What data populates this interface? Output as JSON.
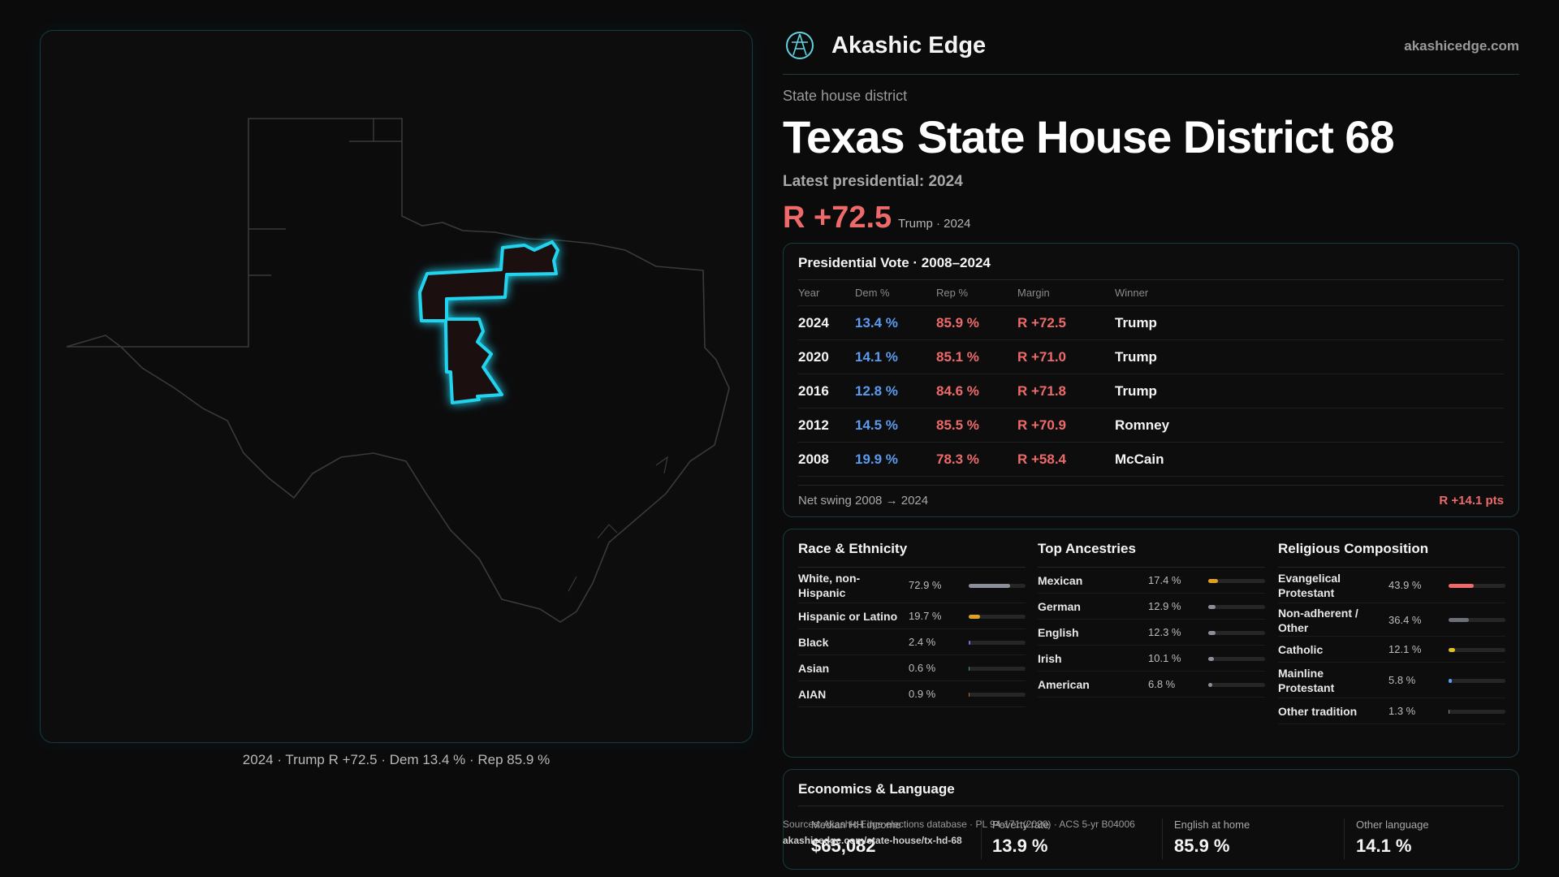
{
  "brand": {
    "name": "Akashic Edge",
    "url": "akashicedge.com"
  },
  "header": {
    "kicker": "State house district",
    "title_state": "Texas",
    "title_district": "State House District 68",
    "latest_label": "Latest presidential: 2024",
    "margin": "R +72.5",
    "margin_sub": "Trump · 2024"
  },
  "map": {
    "caption": "2024 · Trump R +72.5 · Dem 13.4 % · Rep 85.9 %",
    "highlight_color": "#22d3ee",
    "outline_color": "#3a3a3a"
  },
  "presidential": {
    "title": "Presidential Vote · 2008–2024",
    "columns": [
      "Year",
      "Dem %",
      "Rep %",
      "Margin",
      "Winner"
    ],
    "rows": [
      {
        "year": "2024",
        "dem": "13.4 %",
        "rep": "85.9 %",
        "margin": "R +72.5",
        "winner": "Trump"
      },
      {
        "year": "2020",
        "dem": "14.1 %",
        "rep": "85.1 %",
        "margin": "R +71.0",
        "winner": "Trump"
      },
      {
        "year": "2016",
        "dem": "12.8 %",
        "rep": "84.6 %",
        "margin": "R +71.8",
        "winner": "Trump"
      },
      {
        "year": "2012",
        "dem": "14.5 %",
        "rep": "85.5 %",
        "margin": "R +70.9",
        "winner": "Romney"
      },
      {
        "year": "2008",
        "dem": "19.9 %",
        "rep": "78.3 %",
        "margin": "R +58.4",
        "winner": "McCain"
      }
    ],
    "swing_label": "Net swing 2008 → 2024",
    "swing_value": "R +14.1 pts"
  },
  "race": {
    "title": "Race & Ethnicity",
    "items": [
      {
        "label": "White, non-\nHispanic",
        "pct": "72.9 %",
        "value": 72.9,
        "color": "#8a8f99"
      },
      {
        "label": "Hispanic or Latino",
        "pct": "19.7 %",
        "value": 19.7,
        "color": "#e0a020"
      },
      {
        "label": "Black",
        "pct": "2.4 %",
        "value": 2.4,
        "color": "#7d6bd6"
      },
      {
        "label": "Asian",
        "pct": "0.6 %",
        "value": 0.6,
        "color": "#3aa98a"
      },
      {
        "label": "AIAN",
        "pct": "0.9 %",
        "value": 0.9,
        "color": "#c0603a"
      }
    ]
  },
  "ancestry": {
    "title": "Top Ancestries",
    "items": [
      {
        "label": "Mexican",
        "pct": "17.4 %",
        "value": 17.4,
        "color": "#e0a020"
      },
      {
        "label": "German",
        "pct": "12.9 %",
        "value": 12.9,
        "color": "#8a8f99"
      },
      {
        "label": "English",
        "pct": "12.3 %",
        "value": 12.3,
        "color": "#8a8f99"
      },
      {
        "label": "Irish",
        "pct": "10.1 %",
        "value": 10.1,
        "color": "#8a8f99"
      },
      {
        "label": "American",
        "pct": "6.8 %",
        "value": 6.8,
        "color": "#8a8f99"
      }
    ]
  },
  "religion": {
    "title": "Religious Composition",
    "items": [
      {
        "label": "Evangelical\nProtestant",
        "pct": "43.9 %",
        "value": 43.9,
        "color": "#ee6a6a"
      },
      {
        "label": "Non-adherent /\nOther",
        "pct": "36.4 %",
        "value": 36.4,
        "color": "#6b6f78"
      },
      {
        "label": "Catholic",
        "pct": "12.1 %",
        "value": 12.1,
        "color": "#e0c020"
      },
      {
        "label": "Mainline\nProtestant",
        "pct": "5.8 %",
        "value": 5.8,
        "color": "#5b9cf0"
      },
      {
        "label": "Other tradition",
        "pct": "1.3 %",
        "value": 1.3,
        "color": "#8a8f99"
      }
    ]
  },
  "economics": {
    "title": "Economics & Language",
    "stats": [
      {
        "label": "Median HH income",
        "value": "$65,082"
      },
      {
        "label": "Poverty rate",
        "value": "13.9 %"
      },
      {
        "label": "English at home",
        "value": "85.9 %"
      },
      {
        "label": "Other language",
        "value": "14.1 %"
      }
    ]
  },
  "source": {
    "line1": "Sources: Akashic Edge elections database · PL 94-171 (2020) · ACS 5-yr B04006",
    "line2": "akashicedge.com/state-house/tx-hd-68"
  }
}
